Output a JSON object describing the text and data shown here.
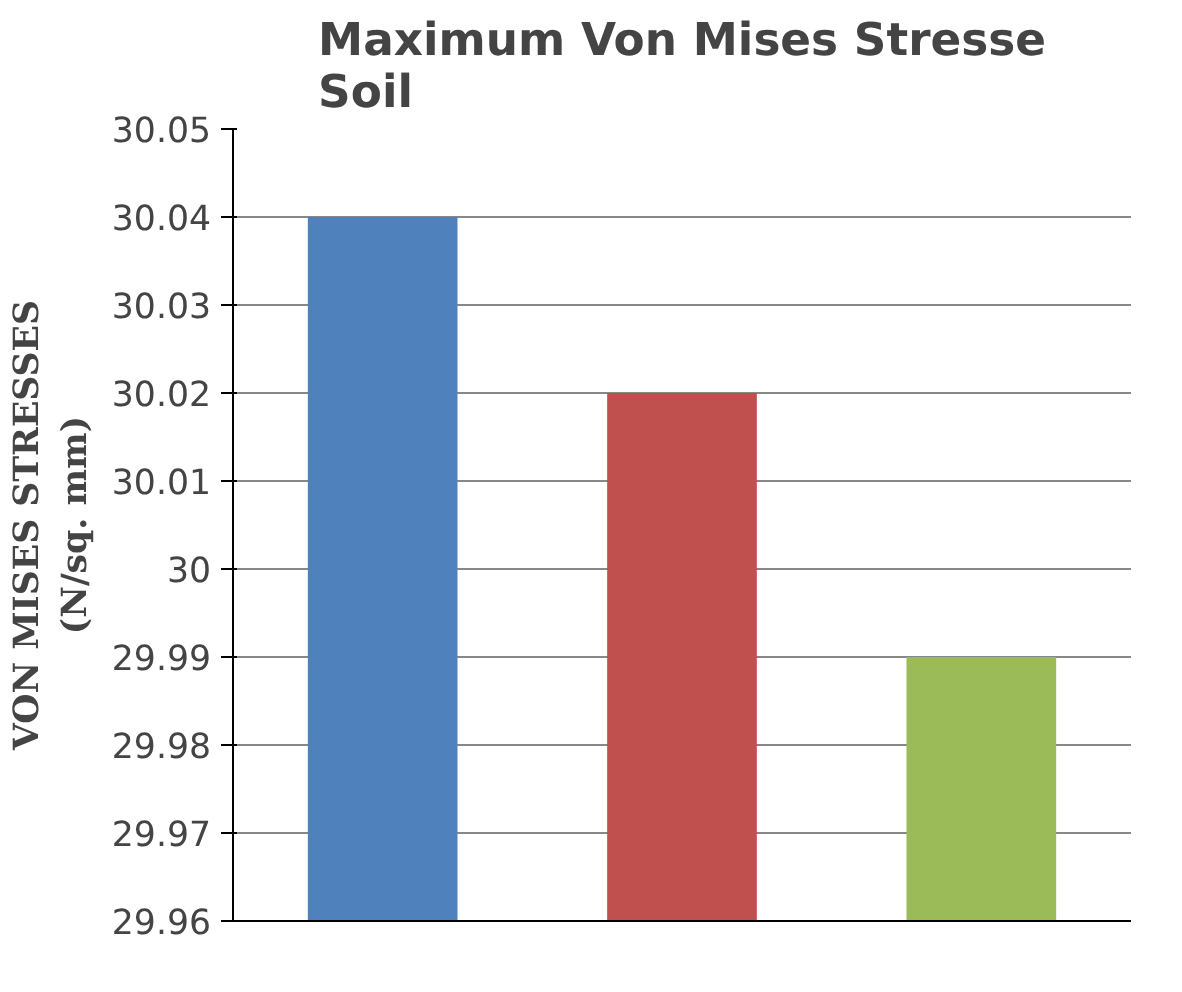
{
  "chart_data": {
    "type": "bar",
    "title": "Maximum Von Mises Stresse\nSoil",
    "ylabel": "VON MISES STRESSES\n(N/sq. mm)",
    "categories": [
      null,
      null,
      null
    ],
    "values": [
      30.04,
      30.02,
      29.99
    ],
    "colors": [
      "#4f81bd",
      "#c0504d",
      "#9bbb59"
    ],
    "ylim": [
      29.96,
      30.05
    ],
    "yticks": [
      29.96,
      29.97,
      29.98,
      29.99,
      30,
      30.01,
      30.02,
      30.03,
      30.04,
      30.05
    ],
    "grid": "y"
  }
}
